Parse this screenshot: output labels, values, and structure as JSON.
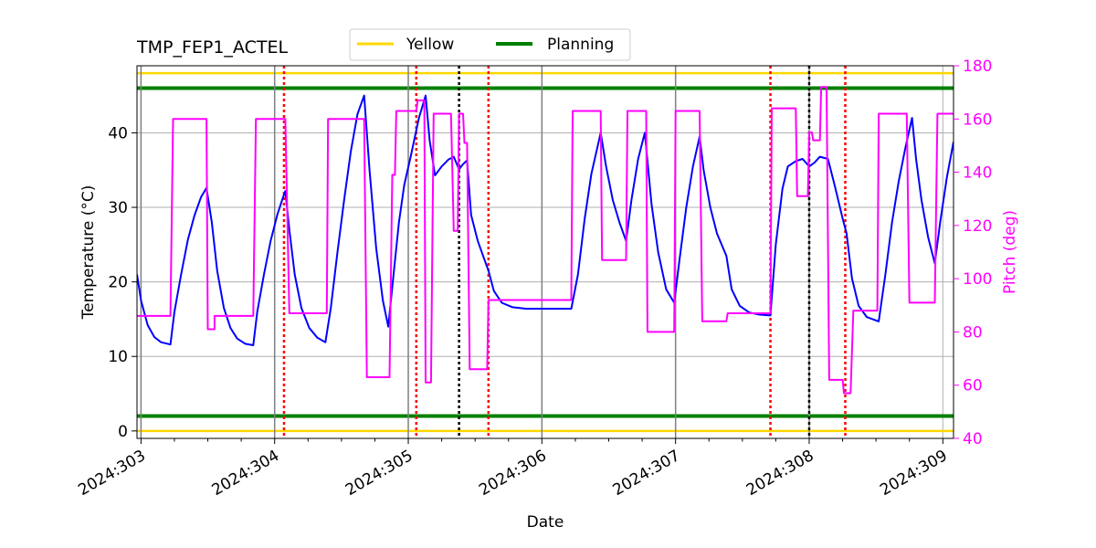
{
  "chart_data": {
    "type": "line",
    "title": "TMP_FEP1_ACTEL",
    "xlabel": "Date",
    "ylabel_left": "Temperature (°C)",
    "ylabel_right": "Pitch (deg)",
    "xlim": [
      302.97,
      309.08
    ],
    "ylim_left": [
      -1,
      49
    ],
    "ylim_right": [
      40,
      180
    ],
    "x_ticks": [
      {
        "value": 303,
        "label": "2024:303"
      },
      {
        "value": 304,
        "label": "2024:304"
      },
      {
        "value": 305,
        "label": "2024:305"
      },
      {
        "value": 306,
        "label": "2024:306"
      },
      {
        "value": 307,
        "label": "2024:307"
      },
      {
        "value": 308,
        "label": "2024:308"
      },
      {
        "value": 309,
        "label": "2024:309"
      }
    ],
    "y_ticks_left": [
      0,
      10,
      20,
      30,
      40
    ],
    "y_ticks_right": [
      40,
      60,
      80,
      100,
      120,
      140,
      160,
      180
    ],
    "grid": true,
    "legend": {
      "placement": "top-center",
      "entries": [
        {
          "label": "Yellow",
          "color": "#ffd700"
        },
        {
          "label": "Planning",
          "color": "#008000"
        }
      ]
    },
    "limit_lines": [
      {
        "name": "Yellow",
        "values": [
          48,
          0
        ],
        "color": "#ffd700"
      },
      {
        "name": "Planning",
        "values": [
          46,
          2
        ],
        "color": "#008000"
      }
    ],
    "vertical_markers": {
      "gray_solid": [
        303.0,
        304.0,
        305.0,
        306.0,
        307.0,
        308.0
      ],
      "red_dotted": [
        304.07,
        305.06,
        305.6,
        307.71,
        308.27
      ],
      "black_dotted": [
        305.38,
        308.0
      ]
    },
    "series": [
      {
        "axis": "left",
        "color": "#0000ff",
        "points": [
          [
            302.97,
            21
          ],
          [
            303.0,
            17.5
          ],
          [
            303.05,
            14.2
          ],
          [
            303.1,
            12.6
          ],
          [
            303.15,
            11.9
          ],
          [
            303.22,
            11.6
          ],
          [
            303.25,
            16.0
          ],
          [
            303.3,
            21.0
          ],
          [
            303.35,
            25.6
          ],
          [
            303.4,
            28.9
          ],
          [
            303.45,
            31.4
          ],
          [
            303.49,
            32.6
          ],
          [
            303.53,
            28.0
          ],
          [
            303.57,
            21.5
          ],
          [
            303.62,
            16.5
          ],
          [
            303.67,
            13.8
          ],
          [
            303.72,
            12.4
          ],
          [
            303.78,
            11.7
          ],
          [
            303.84,
            11.5
          ],
          [
            303.87,
            16.0
          ],
          [
            303.92,
            21.0
          ],
          [
            303.97,
            25.5
          ],
          [
            304.02,
            29.0
          ],
          [
            304.06,
            31.2
          ],
          [
            304.08,
            32.2
          ],
          [
            304.11,
            27.0
          ],
          [
            304.15,
            21.0
          ],
          [
            304.2,
            16.5
          ],
          [
            304.26,
            13.8
          ],
          [
            304.32,
            12.5
          ],
          [
            304.38,
            11.9
          ],
          [
            304.42,
            16.5
          ],
          [
            304.47,
            24.0
          ],
          [
            304.52,
            31.0
          ],
          [
            304.57,
            37.5
          ],
          [
            304.62,
            42.5
          ],
          [
            304.67,
            45.0
          ],
          [
            304.71,
            35.0
          ],
          [
            304.76,
            24.5
          ],
          [
            304.81,
            17.5
          ],
          [
            304.85,
            14.0
          ],
          [
            304.89,
            21.0
          ],
          [
            304.93,
            28.0
          ],
          [
            304.97,
            33.0
          ],
          [
            305.02,
            37.0
          ],
          [
            305.08,
            42.0
          ],
          [
            305.13,
            45.0
          ],
          [
            305.16,
            39.0
          ],
          [
            305.2,
            34.3
          ],
          [
            305.25,
            35.5
          ],
          [
            305.3,
            36.4
          ],
          [
            305.34,
            36.8
          ],
          [
            305.38,
            35.1
          ],
          [
            305.41,
            35.8
          ],
          [
            305.44,
            36.3
          ],
          [
            305.47,
            29.0
          ],
          [
            305.52,
            25.5
          ],
          [
            305.57,
            23.0
          ],
          [
            305.6,
            21.5
          ],
          [
            305.64,
            18.8
          ],
          [
            305.7,
            17.2
          ],
          [
            305.78,
            16.6
          ],
          [
            305.88,
            16.4
          ],
          [
            306.0,
            16.4
          ],
          [
            306.22,
            16.4
          ],
          [
            306.27,
            21.0
          ],
          [
            306.32,
            28.5
          ],
          [
            306.37,
            34.5
          ],
          [
            306.44,
            40.0
          ],
          [
            306.48,
            35.5
          ],
          [
            306.53,
            31.0
          ],
          [
            306.58,
            28.0
          ],
          [
            306.63,
            25.5
          ],
          [
            306.67,
            31.0
          ],
          [
            306.72,
            36.5
          ],
          [
            306.77,
            40.0
          ],
          [
            306.82,
            30.5
          ],
          [
            306.87,
            24.0
          ],
          [
            306.93,
            19.0
          ],
          [
            306.99,
            17.2
          ],
          [
            307.03,
            23.0
          ],
          [
            307.08,
            30.0
          ],
          [
            307.13,
            35.5
          ],
          [
            307.18,
            39.5
          ],
          [
            307.21,
            35.0
          ],
          [
            307.26,
            30.0
          ],
          [
            307.31,
            26.5
          ],
          [
            307.38,
            23.5
          ],
          [
            307.42,
            19.0
          ],
          [
            307.48,
            16.8
          ],
          [
            307.55,
            15.9
          ],
          [
            307.63,
            15.6
          ],
          [
            307.71,
            15.5
          ],
          [
            307.75,
            25.0
          ],
          [
            307.8,
            32.5
          ],
          [
            307.84,
            35.5
          ],
          [
            307.9,
            36.2
          ],
          [
            307.95,
            36.5
          ],
          [
            308.0,
            35.5
          ],
          [
            308.04,
            36.0
          ],
          [
            308.08,
            36.8
          ],
          [
            308.14,
            36.5
          ],
          [
            308.19,
            33.0
          ],
          [
            308.25,
            28.5
          ],
          [
            308.28,
            26.5
          ],
          [
            308.32,
            20.5
          ],
          [
            308.37,
            16.8
          ],
          [
            308.43,
            15.3
          ],
          [
            308.52,
            14.7
          ],
          [
            308.57,
            21.0
          ],
          [
            308.62,
            28.0
          ],
          [
            308.67,
            33.5
          ],
          [
            308.72,
            38.0
          ],
          [
            308.77,
            42.0
          ],
          [
            308.8,
            36.5
          ],
          [
            308.84,
            31.0
          ],
          [
            308.89,
            26.0
          ],
          [
            308.94,
            22.5
          ],
          [
            308.98,
            28.0
          ],
          [
            309.03,
            34.0
          ],
          [
            309.08,
            38.8
          ]
        ]
      },
      {
        "axis": "right",
        "color": "#ff00ff",
        "points": [
          [
            302.97,
            86
          ],
          [
            303.22,
            86
          ],
          [
            303.24,
            160
          ],
          [
            303.49,
            160
          ],
          [
            303.5,
            81
          ],
          [
            303.55,
            81
          ],
          [
            303.55,
            86
          ],
          [
            303.84,
            86
          ],
          [
            303.86,
            160
          ],
          [
            304.08,
            160
          ],
          [
            304.11,
            87
          ],
          [
            304.39,
            87
          ],
          [
            304.4,
            160
          ],
          [
            304.67,
            160
          ],
          [
            304.69,
            63
          ],
          [
            304.86,
            63
          ],
          [
            304.88,
            139
          ],
          [
            304.9,
            139
          ],
          [
            304.91,
            163
          ],
          [
            305.06,
            163
          ],
          [
            305.07,
            167
          ],
          [
            305.12,
            167
          ],
          [
            305.13,
            61
          ],
          [
            305.17,
            61
          ],
          [
            305.19,
            162
          ],
          [
            305.32,
            162
          ],
          [
            305.34,
            118
          ],
          [
            305.37,
            118
          ],
          [
            305.38,
            162
          ],
          [
            305.41,
            162
          ],
          [
            305.42,
            151
          ],
          [
            305.44,
            151
          ],
          [
            305.46,
            66
          ],
          [
            305.59,
            66
          ],
          [
            305.6,
            92
          ],
          [
            306.22,
            92
          ],
          [
            306.23,
            163
          ],
          [
            306.44,
            163
          ],
          [
            306.45,
            107
          ],
          [
            306.63,
            107
          ],
          [
            306.64,
            163
          ],
          [
            306.78,
            163
          ],
          [
            306.79,
            80
          ],
          [
            306.99,
            80
          ],
          [
            307.0,
            163
          ],
          [
            307.18,
            163
          ],
          [
            307.2,
            84
          ],
          [
            307.38,
            84
          ],
          [
            307.39,
            87
          ],
          [
            307.71,
            87
          ],
          [
            307.72,
            164
          ],
          [
            307.9,
            164
          ],
          [
            307.91,
            131
          ],
          [
            307.99,
            131
          ],
          [
            308.0,
            155
          ],
          [
            308.02,
            155
          ],
          [
            308.03,
            152
          ],
          [
            308.08,
            152
          ],
          [
            308.09,
            172
          ],
          [
            308.13,
            172
          ],
          [
            308.15,
            62
          ],
          [
            308.25,
            62
          ],
          [
            308.26,
            57
          ],
          [
            308.31,
            57
          ],
          [
            308.33,
            88
          ],
          [
            308.51,
            88
          ],
          [
            308.52,
            162
          ],
          [
            308.73,
            162
          ],
          [
            308.75,
            91
          ],
          [
            308.94,
            91
          ],
          [
            308.96,
            162
          ],
          [
            309.08,
            162
          ]
        ]
      }
    ]
  }
}
